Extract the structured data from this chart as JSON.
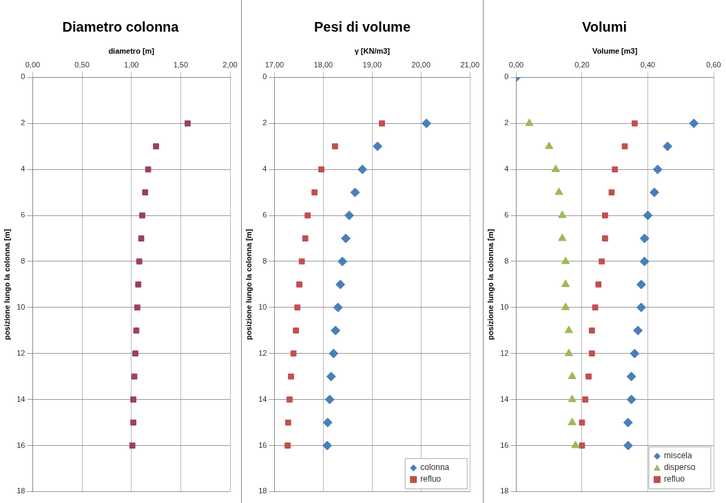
{
  "chart_data": [
    {
      "type": "scatter",
      "title": "Diametro colonna",
      "xlabel": "diametro [m]",
      "ylabel": "posizione lungo la colonna [m]",
      "xlim": [
        0,
        2
      ],
      "xticks": [
        {
          "value": 0,
          "label": "0,00"
        },
        {
          "value": 0.5,
          "label": "0,50"
        },
        {
          "value": 1,
          "label": "1,00"
        },
        {
          "value": 1.5,
          "label": "1,50"
        },
        {
          "value": 2,
          "label": "2,00"
        }
      ],
      "ylim": [
        18,
        0
      ],
      "yticks": [
        0,
        2,
        4,
        6,
        8,
        10,
        12,
        14,
        16,
        18
      ],
      "grid": true,
      "legend": false,
      "marker": "square",
      "series": [
        {
          "color": "#983f6a",
          "x": [
            1.57,
            1.25,
            1.17,
            1.14,
            1.11,
            1.1,
            1.08,
            1.07,
            1.06,
            1.05,
            1.04,
            1.03,
            1.02,
            1.02,
            1.01
          ],
          "values": [
            2,
            3,
            4,
            5,
            6,
            7,
            8,
            9,
            10,
            11,
            12,
            13,
            14,
            15,
            16
          ]
        }
      ]
    },
    {
      "type": "scatter",
      "title": "Pesi di volume",
      "xlabel": "γ [KN/m3]",
      "ylabel": "posizione lungo la colonna [m]",
      "xlim": [
        17,
        21
      ],
      "xticks": [
        {
          "value": 17,
          "label": "17,00"
        },
        {
          "value": 18,
          "label": "18,00"
        },
        {
          "value": 19,
          "label": "19,00"
        },
        {
          "value": 20,
          "label": "20,00"
        },
        {
          "value": 21,
          "label": "21,00"
        }
      ],
      "ylim": [
        18,
        0
      ],
      "yticks": [
        0,
        2,
        4,
        6,
        8,
        10,
        12,
        14,
        16,
        18
      ],
      "grid": true,
      "legend": "bottom right",
      "series": [
        {
          "name": "colonna",
          "color": "#4a7ebb",
          "marker": "diamond",
          "x": [
            20.11,
            19.11,
            18.8,
            18.65,
            18.53,
            18.46,
            18.39,
            18.35,
            18.3,
            18.25,
            18.21,
            18.16,
            18.13,
            18.09,
            18.08
          ],
          "values": [
            2,
            3,
            4,
            5,
            6,
            7,
            8,
            9,
            10,
            11,
            12,
            13,
            14,
            15,
            16
          ]
        },
        {
          "name": "refluo",
          "color": "#c0504d",
          "marker": "square",
          "x": [
            19.2,
            18.24,
            17.96,
            17.82,
            17.68,
            17.63,
            17.56,
            17.51,
            17.47,
            17.44,
            17.39,
            17.34,
            17.31,
            17.28,
            17.27
          ],
          "values": [
            2,
            3,
            4,
            5,
            6,
            7,
            8,
            9,
            10,
            11,
            12,
            13,
            14,
            15,
            16
          ]
        }
      ]
    },
    {
      "type": "scatter",
      "title": "Volumi",
      "xlabel": "Volume [m3]",
      "ylabel": "posizione lungo la colonna [m]",
      "xlim": [
        0,
        0.6
      ],
      "xticks": [
        {
          "value": 0,
          "label": "0,00"
        },
        {
          "value": 0.2,
          "label": "0,20"
        },
        {
          "value": 0.4,
          "label": "0,40"
        },
        {
          "value": 0.6,
          "label": "0,60"
        }
      ],
      "ylim": [
        18,
        0
      ],
      "yticks": [
        0,
        2,
        4,
        6,
        8,
        10,
        12,
        14,
        16,
        18
      ],
      "grid": true,
      "legend": "bottom right",
      "series": [
        {
          "name": "miscela",
          "color": "#4a7ebb",
          "marker": "diamond",
          "x": [
            0,
            0.54,
            0.46,
            0.43,
            0.42,
            0.4,
            0.39,
            0.39,
            0.38,
            0.38,
            0.37,
            0.36,
            0.35,
            0.35,
            0.34,
            0.34
          ],
          "values": [
            0,
            2,
            3,
            4,
            5,
            6,
            7,
            8,
            9,
            10,
            11,
            12,
            13,
            14,
            15,
            16
          ]
        },
        {
          "name": "disperso",
          "color": "#9bbb59",
          "marker": "triangle",
          "x": [
            0.04,
            0.1,
            0.12,
            0.13,
            0.14,
            0.14,
            0.15,
            0.15,
            0.15,
            0.16,
            0.16,
            0.17,
            0.17,
            0.17,
            0.18
          ],
          "values": [
            2,
            3,
            4,
            5,
            6,
            7,
            8,
            9,
            10,
            11,
            12,
            13,
            14,
            15,
            16
          ]
        },
        {
          "name": "refluo",
          "color": "#c0504d",
          "marker": "square",
          "x": [
            0.36,
            0.33,
            0.3,
            0.29,
            0.27,
            0.27,
            0.26,
            0.25,
            0.24,
            0.23,
            0.23,
            0.22,
            0.21,
            0.2,
            0.2
          ],
          "values": [
            2,
            3,
            4,
            5,
            6,
            7,
            8,
            9,
            10,
            11,
            12,
            13,
            14,
            15,
            16
          ]
        }
      ]
    }
  ]
}
